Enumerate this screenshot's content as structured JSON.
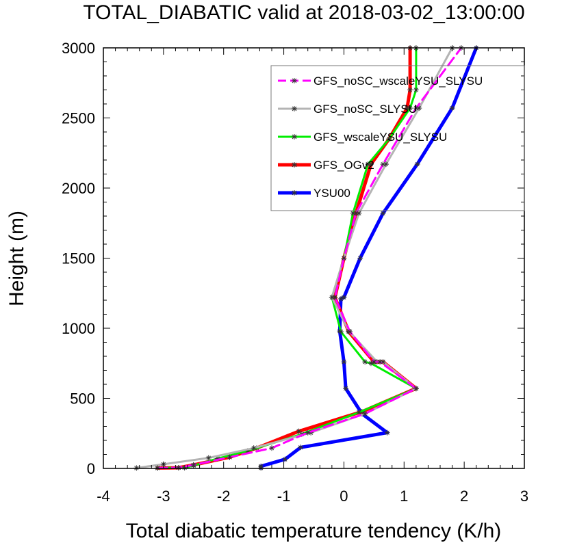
{
  "chart_data": {
    "type": "line",
    "title": "TOTAL_DIABATIC valid at 2018-03-02_13:00:00",
    "xlabel": "Total diabatic temperature tendency (K/h)",
    "ylabel": "Height (m)",
    "xlim": [
      -4,
      3
    ],
    "ylim": [
      0,
      3000
    ],
    "xticks": [
      -4,
      -3,
      -2,
      -1,
      0,
      1,
      2,
      3
    ],
    "yticks": [
      0,
      500,
      1000,
      1500,
      2000,
      2500,
      3000
    ],
    "xtick_labels": [
      "-4",
      "-3",
      "-2",
      "-1",
      "0",
      "1",
      "2",
      "3"
    ],
    "ytick_labels": [
      "0",
      "500",
      "1000",
      "1500",
      "2000",
      "2500",
      "3000"
    ],
    "legend_position": "top-right",
    "series": [
      {
        "name": "YSU00",
        "color": "#0000ff",
        "style": "solid",
        "width": 5,
        "x": [
          -1.38,
          -1.38,
          -0.98,
          -0.72,
          0.72,
          0.3,
          0.03,
          0.0,
          -0.07,
          -0.05,
          0.0,
          0.27,
          0.65,
          1.22,
          1.8,
          2.2
        ],
        "y": [
          3,
          15,
          65,
          150,
          255,
          390,
          570,
          760,
          980,
          1210,
          1220,
          1500,
          1820,
          2170,
          2570,
          3000
        ]
      },
      {
        "name": "GFS_OGv2",
        "color": "#ff0000",
        "style": "solid",
        "width": 5,
        "x": [
          -3.1,
          -2.75,
          -2.5,
          -1.9,
          -1.45,
          -0.75,
          0.3,
          1.2,
          0.65,
          0.5,
          0.08,
          -0.15,
          0.0,
          0.2,
          0.45,
          0.75,
          1.05,
          1.1,
          1.1
        ],
        "y": [
          3,
          5,
          25,
          80,
          145,
          265,
          405,
          570,
          760,
          760,
          975,
          1220,
          1500,
          1820,
          2170,
          2350,
          2570,
          2700,
          3000
        ]
      },
      {
        "name": "GFS_wscaleYSU_SLYSU",
        "color": "#00ee00",
        "style": "solid",
        "width": 3,
        "x": [
          -3.1,
          -2.65,
          -2.5,
          -2.1,
          -1.6,
          -0.7,
          0.25,
          1.2,
          0.45,
          0.35,
          -0.05,
          -0.2,
          0.0,
          0.15,
          0.4,
          0.75,
          1.1,
          1.2,
          1.2
        ],
        "y": [
          3,
          5,
          20,
          70,
          125,
          245,
          400,
          570,
          750,
          760,
          975,
          1220,
          1500,
          1820,
          2170,
          2350,
          2570,
          2700,
          3000
        ]
      },
      {
        "name": "GFS_noSC_SLYSU",
        "color": "#b4b4b4",
        "style": "solid",
        "width": 3,
        "x": [
          -3.45,
          -3.0,
          -2.25,
          -1.5,
          -0.55,
          0.35,
          1.2,
          0.65,
          0.55,
          0.08,
          -0.2,
          0.0,
          0.25,
          0.7,
          1.25,
          1.8
        ],
        "y": [
          3,
          30,
          75,
          145,
          255,
          390,
          570,
          760,
          760,
          980,
          1220,
          1500,
          1820,
          2170,
          2570,
          3000
        ]
      },
      {
        "name": "GFS_noSC_wscaleYSU_SLYSU",
        "color": "#ff00ff",
        "style": "dashed",
        "width": 3,
        "x": [
          -3.1,
          -2.75,
          -2.5,
          -1.9,
          -1.2,
          -0.6,
          0.35,
          1.2,
          0.6,
          0.5,
          0.1,
          -0.15,
          0.0,
          0.2,
          0.65,
          1.2,
          1.95
        ],
        "y": [
          3,
          5,
          25,
          80,
          145,
          255,
          390,
          570,
          760,
          760,
          975,
          1220,
          1500,
          1820,
          2170,
          2570,
          3000
        ]
      }
    ]
  }
}
